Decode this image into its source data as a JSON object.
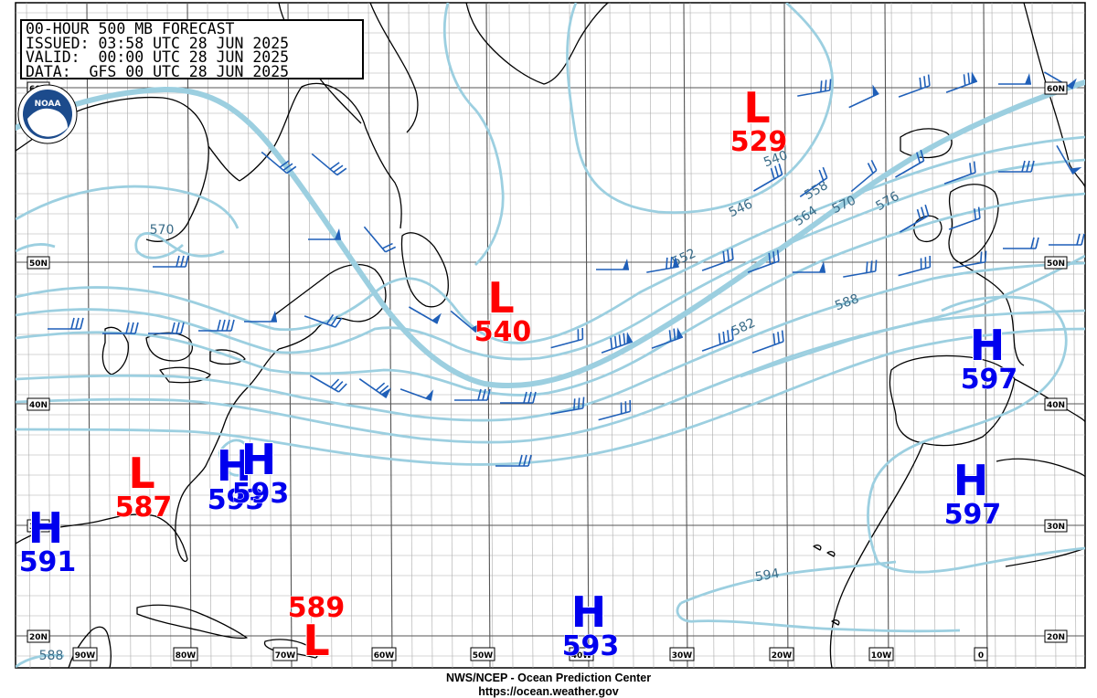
{
  "header": {
    "title_line": "00-HOUR 500 MB FORECAST",
    "issued_line": "ISSUED: 03:58 UTC 28 JUN 2025",
    "valid_line": "VALID:  00:00 UTC 28 JUN 2025",
    "data_line": "DATA:  GFS 00 UTC 28 JUN 2025"
  },
  "logo": {
    "text": "NOAA"
  },
  "footer": {
    "agency": "NWS/NCEP - Ocean Prediction Center",
    "url": "https://ocean.weather.gov"
  },
  "colors": {
    "contour": "#9ccfe0",
    "jet": "#9ccfe0",
    "low": "#ff0000",
    "high": "#0000ee",
    "barb": "#1f5fb8",
    "coast": "#000000",
    "grid": "#777777"
  },
  "latitude_labels": [
    "60N",
    "50N",
    "40N",
    "30N",
    "20N"
  ],
  "longitude_labels": [
    "90W",
    "80W",
    "70W",
    "60W",
    "50W",
    "40W",
    "30W",
    "20W",
    "10W",
    "0"
  ],
  "contour_labels": [
    "570",
    "540",
    "546",
    "552",
    "558",
    "564",
    "570",
    "576",
    "582",
    "588",
    "594",
    "588"
  ],
  "pressure_centers": [
    {
      "type": "L",
      "value": "529"
    },
    {
      "type": "L",
      "value": "540"
    },
    {
      "type": "L",
      "value": "587"
    },
    {
      "type": "L",
      "value": "589"
    },
    {
      "type": "H",
      "value": "597"
    },
    {
      "type": "H",
      "value": "597"
    },
    {
      "type": "H",
      "value": "593"
    },
    {
      "type": "H",
      "value": "593"
    },
    {
      "type": "H",
      "value": "591"
    },
    {
      "type": "H",
      "value": "593"
    }
  ]
}
